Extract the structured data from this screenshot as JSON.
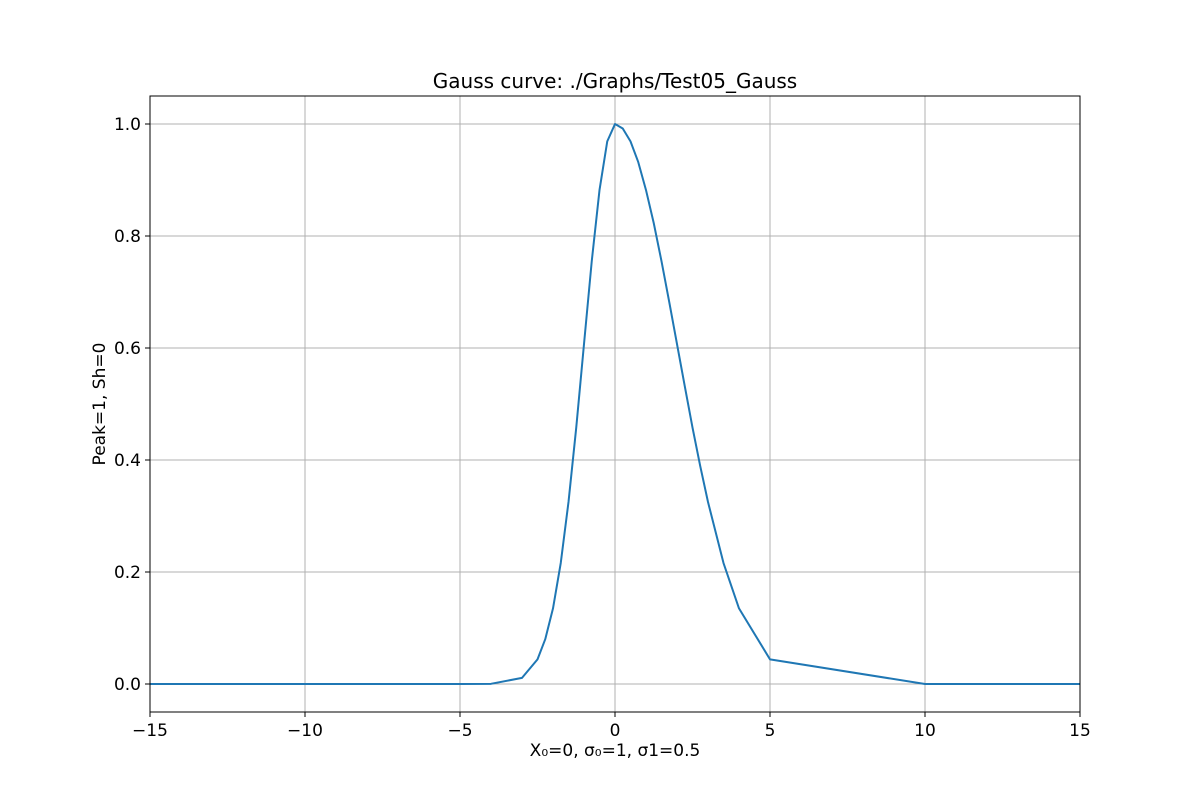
{
  "chart_data": {
    "type": "line",
    "title": "Gauss curve: ./Graphs/Test05_Gauss",
    "xlabel": "X₀=0, σ₀=1, σ1=0.5",
    "ylabel": "Peak=1, Sh=0",
    "xlim": [
      -15,
      15
    ],
    "ylim": [
      -0.05,
      1.05
    ],
    "x_ticks": [
      -15,
      -10,
      -5,
      0,
      5,
      10,
      15
    ],
    "x_tick_labels": [
      "−15",
      "−10",
      "−5",
      "0",
      "5",
      "10",
      "15"
    ],
    "y_ticks": [
      0.0,
      0.2,
      0.4,
      0.6,
      0.8,
      1.0
    ],
    "y_tick_labels": [
      "0.0",
      "0.2",
      "0.4",
      "0.6",
      "0.8",
      "1.0"
    ],
    "grid": true,
    "legend": "none",
    "series": [
      {
        "color": "#1f77b4",
        "x": [
          -15,
          -10,
          -5,
          -4,
          -3,
          -2.5,
          -2.25,
          -2,
          -1.75,
          -1.5,
          -1.25,
          -1,
          -0.75,
          -0.5,
          -0.25,
          0,
          0.25,
          0.5,
          0.75,
          1,
          1.25,
          1.5,
          1.75,
          2,
          2.25,
          2.5,
          2.75,
          3,
          3.5,
          4,
          5,
          10,
          15
        ],
        "y": [
          0,
          0,
          0,
          0.0003,
          0.011,
          0.044,
          0.08,
          0.135,
          0.216,
          0.325,
          0.458,
          0.607,
          0.755,
          0.882,
          0.969,
          1.0,
          0.992,
          0.969,
          0.932,
          0.882,
          0.823,
          0.755,
          0.682,
          0.607,
          0.532,
          0.458,
          0.389,
          0.325,
          0.216,
          0.135,
          0.044,
          0,
          0
        ]
      }
    ]
  }
}
